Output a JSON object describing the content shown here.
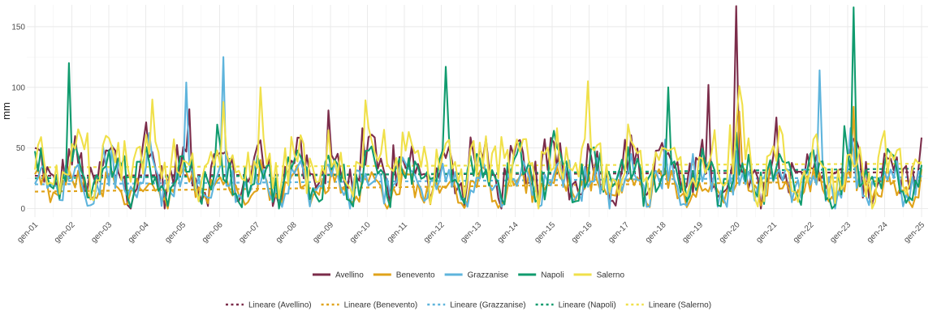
{
  "chart_data": {
    "type": "line",
    "ylabel": "mm",
    "xlabel": "",
    "title": "",
    "ylim": [
      -7,
      168
    ],
    "y_ticks": [
      0,
      50,
      100,
      150
    ],
    "x_ticks": [
      "gen-01",
      "gen-02",
      "gen-03",
      "gen-04",
      "gen-05",
      "gen-06",
      "gen-07",
      "gen-08",
      "gen-09",
      "gen-10",
      "gen-11",
      "gen-12",
      "gen-13",
      "gen-14",
      "gen-15",
      "gen-16",
      "gen-17",
      "gen-18",
      "gen-19",
      "gen-20",
      "gen-21",
      "gen-22",
      "gen-23",
      "gen-24",
      "gen-25"
    ],
    "grid": true,
    "legend_placement": "bottom",
    "series": [
      {
        "name": "Avellino",
        "color": "#7b2c4a",
        "peaks": [
          {
            "x": "gen-05",
            "y": 82
          },
          {
            "x": "gen-09",
            "y": 81
          },
          {
            "x": "gen-19",
            "y": 102
          },
          {
            "x": "gen-20",
            "y": 167
          }
        ]
      },
      {
        "name": "Benevento",
        "color": "#e0a31a",
        "peaks": [
          {
            "x": "gen-20",
            "y": 80
          },
          {
            "x": "gen-23",
            "y": 84
          }
        ]
      },
      {
        "name": "Grazzanise",
        "color": "#5eb4dc",
        "peaks": [
          {
            "x": "gen-05",
            "y": 104
          },
          {
            "x": "gen-06",
            "y": 125
          },
          {
            "x": "gen-22",
            "y": 114
          }
        ]
      },
      {
        "name": "Napoli",
        "color": "#109b6e",
        "peaks": [
          {
            "x": "gen-02",
            "y": 120
          },
          {
            "x": "gen-12",
            "y": 117
          },
          {
            "x": "gen-18",
            "y": 100
          },
          {
            "x": "gen-23",
            "y": 166
          }
        ]
      },
      {
        "name": "Salerno",
        "color": "#f0e04a",
        "peaks": [
          {
            "x": "gen-04",
            "y": 90
          },
          {
            "x": "gen-07",
            "y": 100
          },
          {
            "x": "gen-16",
            "y": 105
          },
          {
            "x": "gen-20",
            "y": 101
          }
        ]
      }
    ],
    "trend_lines": [
      {
        "name": "Lineare (Avellino)",
        "color": "#7b2c4a",
        "start": 27,
        "end": 30
      },
      {
        "name": "Lineare (Benevento)",
        "color": "#e0a31a",
        "start": 14,
        "end": 23
      },
      {
        "name": "Lineare (Grazzanise)",
        "color": "#5eb4dc",
        "start": 20,
        "end": 26
      },
      {
        "name": "Lineare (Napoli)",
        "color": "#109b6e",
        "start": 25,
        "end": 33
      },
      {
        "name": "Lineare (Salerno)",
        "color": "#f0e04a",
        "start": 34,
        "end": 37
      }
    ],
    "means": {
      "Avellino": 32,
      "Benevento": 18,
      "Grazzanise": 23,
      "Napoli": 28,
      "Salerno": 36
    }
  }
}
